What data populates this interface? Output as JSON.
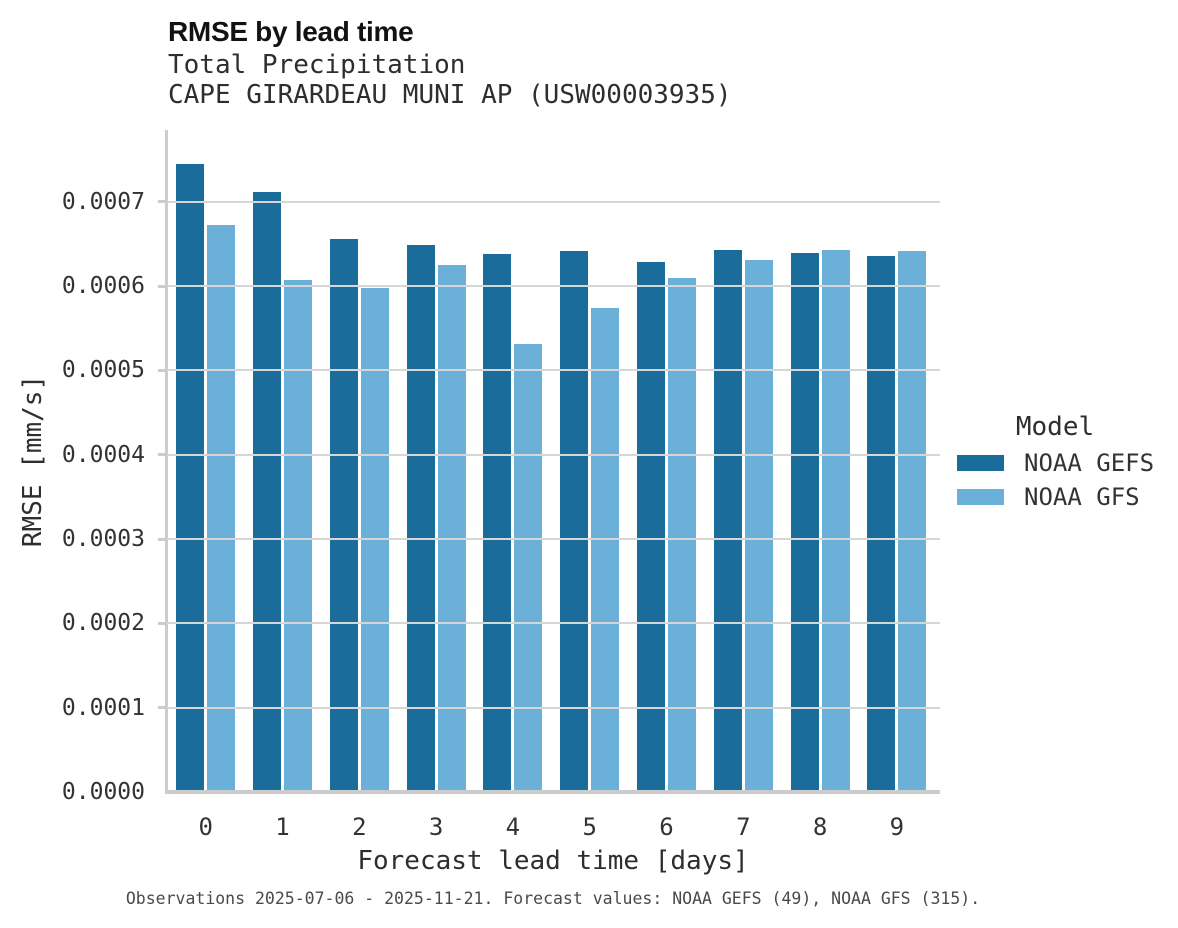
{
  "chart_data": {
    "type": "bar",
    "title": "RMSE by lead time",
    "subtitle_lines": [
      "Total Precipitation",
      "CAPE GIRARDEAU MUNI AP (USW00003935)"
    ],
    "xlabel": "Forecast lead time [days]",
    "ylabel": "RMSE [mm/s]",
    "categories": [
      "0",
      "1",
      "2",
      "3",
      "4",
      "5",
      "6",
      "7",
      "8",
      "9"
    ],
    "series": [
      {
        "name": "NOAA GEFS",
        "color": "#1a6c9b",
        "values": [
          0.000745,
          0.000711,
          0.000656,
          0.000649,
          0.000638,
          0.000641,
          0.000629,
          0.000643,
          0.000639,
          0.000636
        ]
      },
      {
        "name": "NOAA GFS",
        "color": "#6ab0d9",
        "values": [
          0.000672,
          0.000607,
          0.000598,
          0.000625,
          0.000531,
          0.000574,
          0.000609,
          0.000631,
          0.000643,
          0.000641
        ]
      }
    ],
    "ylim": [
      0,
      0.000785
    ],
    "yticks": [
      {
        "value": 0.0,
        "label": "0.0000"
      },
      {
        "value": 0.0001,
        "label": "0.0001"
      },
      {
        "value": 0.0002,
        "label": "0.0002"
      },
      {
        "value": 0.0003,
        "label": "0.0003"
      },
      {
        "value": 0.0004,
        "label": "0.0004"
      },
      {
        "value": 0.0005,
        "label": "0.0005"
      },
      {
        "value": 0.0006,
        "label": "0.0006"
      },
      {
        "value": 0.0007,
        "label": "0.0007"
      }
    ],
    "grid": "horizontal",
    "legend_title": "Model",
    "legend_position": "right"
  },
  "footer": {
    "caption": "Observations 2025-07-06 - 2025-11-21. Forecast values: NOAA GEFS (49), NOAA GFS (315)."
  },
  "colors": {
    "grid": "#d6d6d6",
    "spine": "#cccccc",
    "title_text": "#121212",
    "body_text": "#333333",
    "footer_text": "#4a4a4a"
  }
}
